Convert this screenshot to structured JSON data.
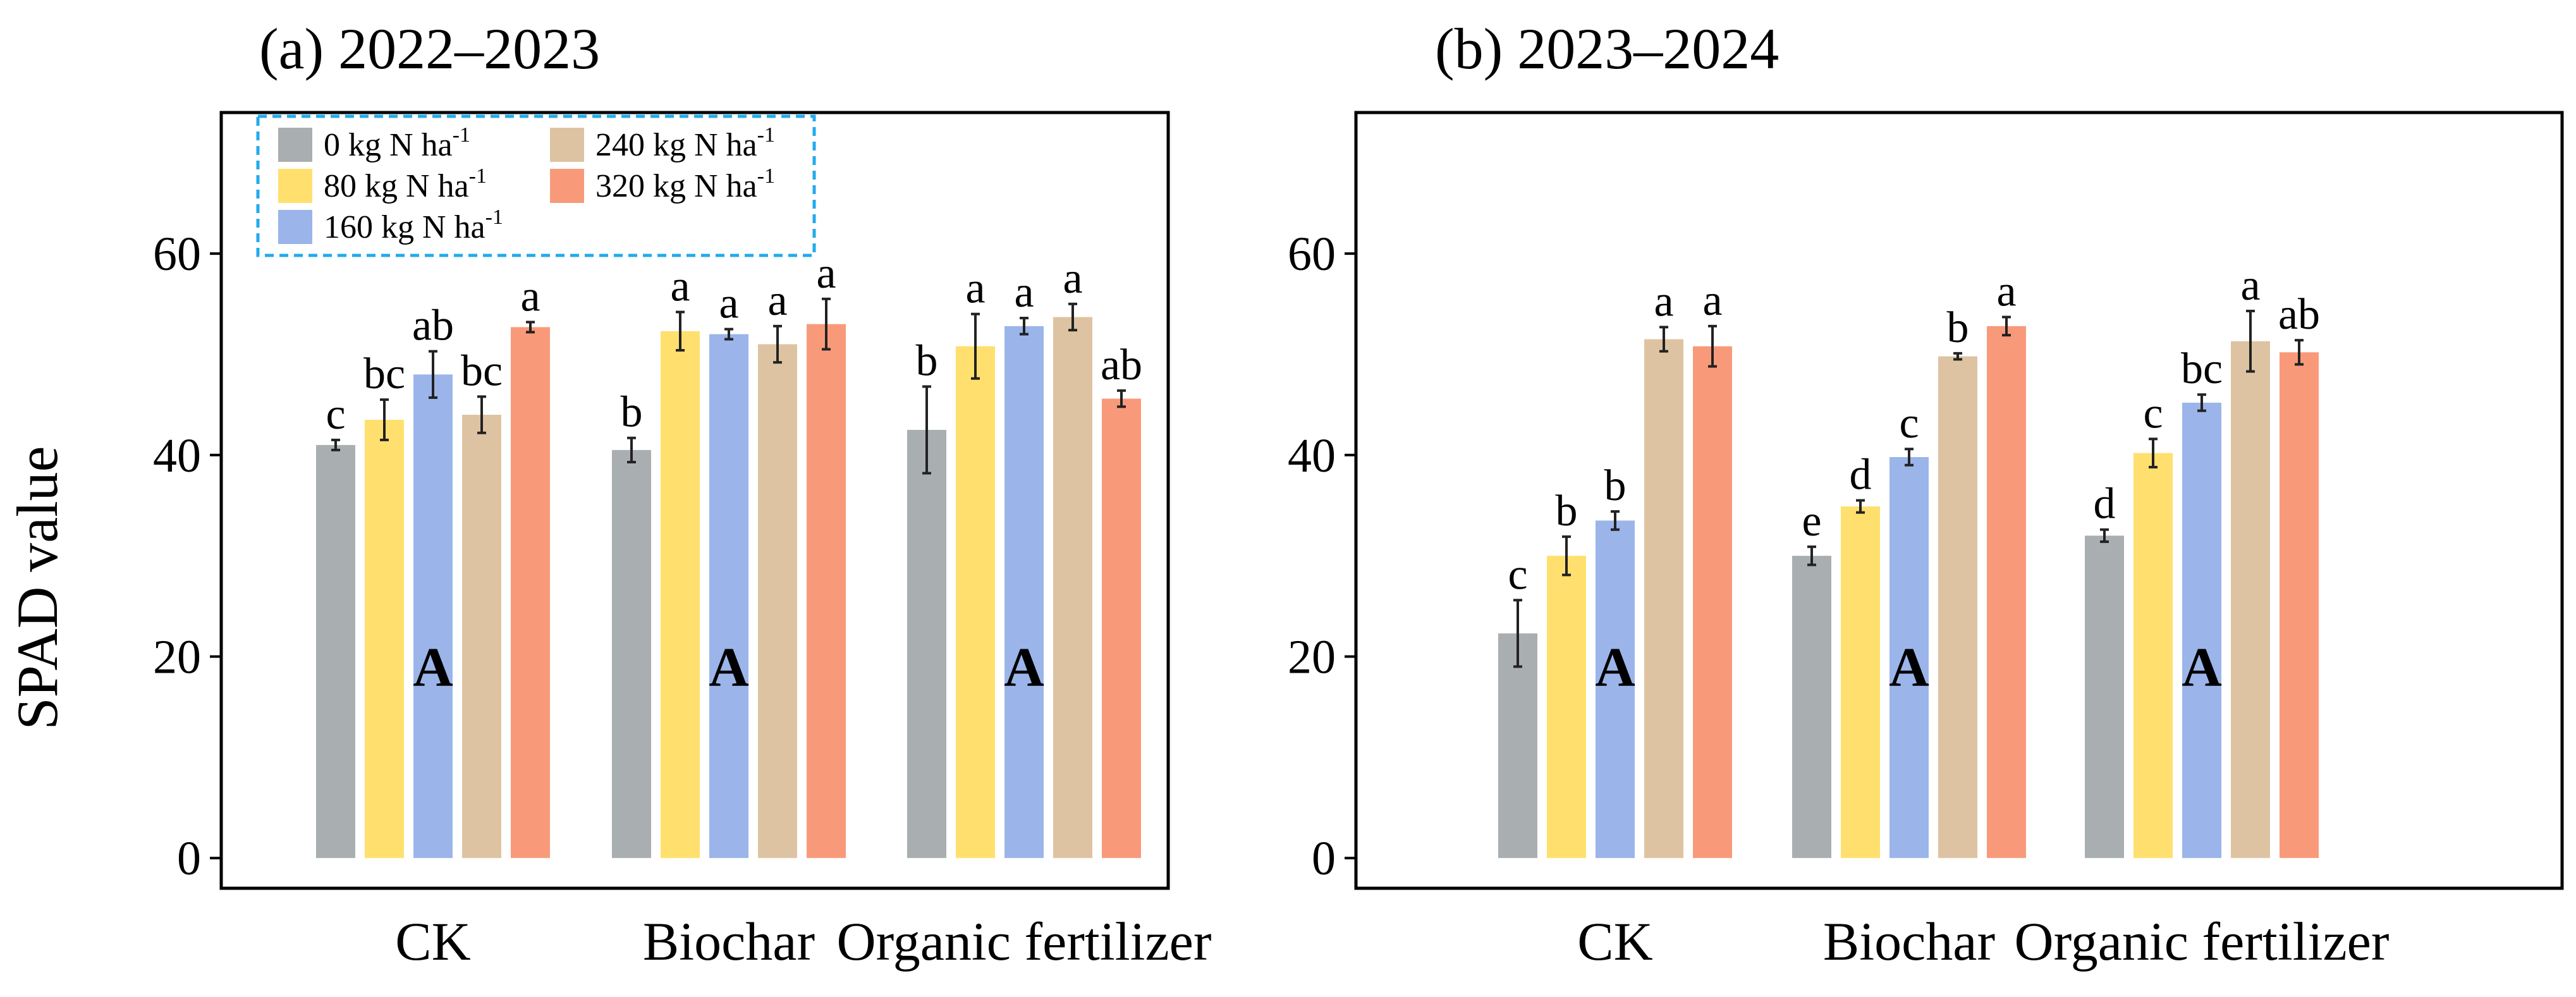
{
  "y_axis_label": "SPAD value",
  "legend": [
    {
      "label": "0 kg N ha",
      "sup": "-1",
      "color": "#A9AEB1"
    },
    {
      "label": "80 kg N ha",
      "sup": "-1",
      "color": "#FFE06E"
    },
    {
      "label": "160 kg N ha",
      "sup": "-1",
      "color": "#9BB5EA"
    },
    {
      "label": "240 kg N ha",
      "sup": "-1",
      "color": "#DEC3A2"
    },
    {
      "label": "320 kg N ha",
      "sup": "-1",
      "color": "#F89A7A"
    }
  ],
  "colors": {
    "n0": "#A9AEB1",
    "n80": "#FFE06E",
    "n160": "#9BB5EA",
    "n240": "#DEC3A2",
    "n320": "#F89A7A",
    "legend_border": "#22AAEE"
  },
  "chart_data": [
    {
      "type": "bar",
      "title": "(a) 2022–2023",
      "ylabel": "SPAD value",
      "ylim": [
        -3,
        74
      ],
      "yticks": [
        0,
        20,
        40,
        60
      ],
      "categories": [
        "CK",
        "Biochar",
        "Organic fertilizer"
      ],
      "group_letters": [
        "A",
        "A",
        "A"
      ],
      "series": [
        {
          "name": "0 kg N ha-1",
          "values": [
            41,
            40.5,
            42.5
          ],
          "errors": [
            0.5,
            1.2,
            4.3
          ],
          "letters": [
            "c",
            "b",
            "b"
          ]
        },
        {
          "name": "80 kg N ha-1",
          "values": [
            43.5,
            52.3,
            50.8
          ],
          "errors": [
            2.0,
            1.9,
            3.2
          ],
          "letters": [
            "bc",
            "a",
            "a"
          ]
        },
        {
          "name": "160 kg N ha-1",
          "values": [
            48,
            52,
            52.8
          ],
          "errors": [
            2.3,
            0.5,
            0.8
          ],
          "letters": [
            "ab",
            "a",
            "a"
          ]
        },
        {
          "name": "240 kg N ha-1",
          "values": [
            44,
            51,
            53.7
          ],
          "errors": [
            1.8,
            1.8,
            1.3
          ],
          "letters": [
            "bc",
            "a",
            "a"
          ]
        },
        {
          "name": "320 kg N ha-1",
          "values": [
            52.7,
            53,
            45.6
          ],
          "errors": [
            0.5,
            2.5,
            0.8
          ],
          "letters": [
            "a",
            "a",
            "ab"
          ]
        }
      ]
    },
    {
      "type": "bar",
      "title": "(b) 2023–2024",
      "ylabel": "",
      "ylim": [
        -3,
        74
      ],
      "yticks": [
        0,
        20,
        40,
        60
      ],
      "categories": [
        "CK",
        "Biochar",
        "Organic fertilizer"
      ],
      "group_letters": [
        "A",
        "A",
        "A"
      ],
      "series": [
        {
          "name": "0 kg N ha-1",
          "values": [
            22.3,
            30,
            32
          ],
          "errors": [
            3.3,
            0.9,
            0.6
          ],
          "letters": [
            "c",
            "e",
            "d"
          ]
        },
        {
          "name": "80 kg N ha-1",
          "values": [
            30,
            34.9,
            40.2
          ],
          "errors": [
            1.9,
            0.6,
            1.4
          ],
          "letters": [
            "b",
            "d",
            "c"
          ]
        },
        {
          "name": "160 kg N ha-1",
          "values": [
            33.5,
            39.8,
            45.2
          ],
          "errors": [
            0.9,
            0.8,
            0.8
          ],
          "letters": [
            "b",
            "c",
            "bc"
          ]
        },
        {
          "name": "240 kg N ha-1",
          "values": [
            51.5,
            49.8,
            51.3
          ],
          "errors": [
            1.2,
            0.3,
            3.0
          ],
          "letters": [
            "a",
            "b",
            "a"
          ]
        },
        {
          "name": "320 kg N ha-1",
          "values": [
            50.8,
            52.8,
            50.2
          ],
          "errors": [
            2.0,
            0.9,
            1.2
          ],
          "letters": [
            "a",
            "a",
            "ab"
          ]
        }
      ]
    }
  ]
}
